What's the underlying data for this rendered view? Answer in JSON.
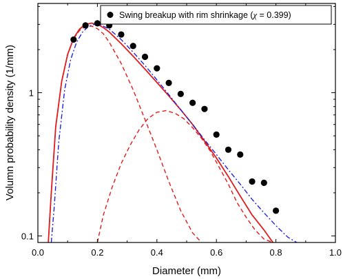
{
  "chart_data": {
    "type": "scatter",
    "xlabel": "Diameter (mm)",
    "ylabel": "Volumn probability density (1/mm)",
    "xlim": [
      0.0,
      1.0
    ],
    "ylim": [
      0.09,
      4.2
    ],
    "yscale": "log",
    "x_ticks": [
      "0.0",
      "0.2",
      "0.4",
      "0.6",
      "0.8",
      "1.0"
    ],
    "x_tick_values": [
      0.0,
      0.2,
      0.4,
      0.6,
      0.8,
      1.0
    ],
    "y_ticks": [
      "0.1",
      "1"
    ],
    "y_tick_values": [
      0.1,
      1
    ],
    "grid": false,
    "legend_position": "top-right",
    "legend": {
      "prefix": "Swing breakup with rim shrinkage (",
      "symbol": "χ",
      "suffix": " = 0.399)"
    },
    "series": [
      {
        "name": "Swing breakup with rim shrinkage (χ = 0.399)",
        "kind": "scatter",
        "color": "#000000",
        "x": [
          0.12,
          0.16,
          0.2,
          0.24,
          0.28,
          0.32,
          0.36,
          0.4,
          0.44,
          0.48,
          0.52,
          0.56,
          0.6,
          0.64,
          0.68,
          0.72,
          0.76,
          0.8
        ],
        "y": [
          2.35,
          2.95,
          3.05,
          2.95,
          2.55,
          2.12,
          1.78,
          1.48,
          1.17,
          0.98,
          0.85,
          0.77,
          0.51,
          0.4,
          0.37,
          0.24,
          0.235,
          0.15
        ]
      },
      {
        "kind": "line",
        "style": "solid",
        "color": "#e01b1b",
        "x": [
          0.035,
          0.045,
          0.06,
          0.08,
          0.1,
          0.12,
          0.14,
          0.16,
          0.18,
          0.2,
          0.22,
          0.24,
          0.28,
          0.32,
          0.36,
          0.4,
          0.44,
          0.48,
          0.52,
          0.56,
          0.6,
          0.64,
          0.68,
          0.72,
          0.76,
          0.79
        ],
        "y": [
          0.09,
          0.2,
          0.58,
          1.2,
          1.85,
          2.4,
          2.78,
          3.0,
          3.06,
          3.0,
          2.85,
          2.65,
          2.2,
          1.8,
          1.46,
          1.18,
          0.95,
          0.76,
          0.6,
          0.46,
          0.35,
          0.26,
          0.19,
          0.14,
          0.11,
          0.09
        ]
      },
      {
        "kind": "line",
        "style": "dashed",
        "color": "#e01b1b",
        "x": [
          0.035,
          0.045,
          0.06,
          0.08,
          0.1,
          0.12,
          0.14,
          0.16,
          0.18,
          0.2,
          0.22,
          0.24,
          0.28,
          0.32,
          0.36,
          0.4,
          0.44,
          0.48,
          0.52,
          0.55
        ],
        "y": [
          0.09,
          0.2,
          0.58,
          1.2,
          1.85,
          2.38,
          2.72,
          2.9,
          2.92,
          2.8,
          2.58,
          2.25,
          1.6,
          1.05,
          0.65,
          0.4,
          0.24,
          0.15,
          0.105,
          0.09
        ]
      },
      {
        "kind": "line",
        "style": "dashed",
        "color": "#e01b1b",
        "x": [
          0.2,
          0.22,
          0.25,
          0.28,
          0.31,
          0.34,
          0.37,
          0.4,
          0.43,
          0.46,
          0.49,
          0.52,
          0.55,
          0.58,
          0.61,
          0.64,
          0.67,
          0.7,
          0.73,
          0.76,
          0.79
        ],
        "y": [
          0.09,
          0.14,
          0.22,
          0.32,
          0.43,
          0.55,
          0.66,
          0.73,
          0.75,
          0.72,
          0.66,
          0.57,
          0.48,
          0.39,
          0.3,
          0.23,
          0.17,
          0.135,
          0.11,
          0.095,
          0.09
        ]
      },
      {
        "kind": "line",
        "style": "dashdot",
        "color": "#2222dd",
        "x": [
          0.045,
          0.055,
          0.07,
          0.09,
          0.11,
          0.13,
          0.15,
          0.17,
          0.19,
          0.21,
          0.24,
          0.28,
          0.32,
          0.36,
          0.4,
          0.44,
          0.48,
          0.52,
          0.56,
          0.6,
          0.64,
          0.68,
          0.72,
          0.76,
          0.8,
          0.84,
          0.87
        ],
        "y": [
          0.09,
          0.16,
          0.45,
          1.05,
          1.7,
          2.25,
          2.65,
          2.9,
          3.0,
          2.98,
          2.78,
          2.35,
          1.92,
          1.55,
          1.23,
          0.97,
          0.76,
          0.6,
          0.47,
          0.37,
          0.29,
          0.23,
          0.18,
          0.145,
          0.118,
          0.098,
          0.09
        ]
      }
    ]
  }
}
